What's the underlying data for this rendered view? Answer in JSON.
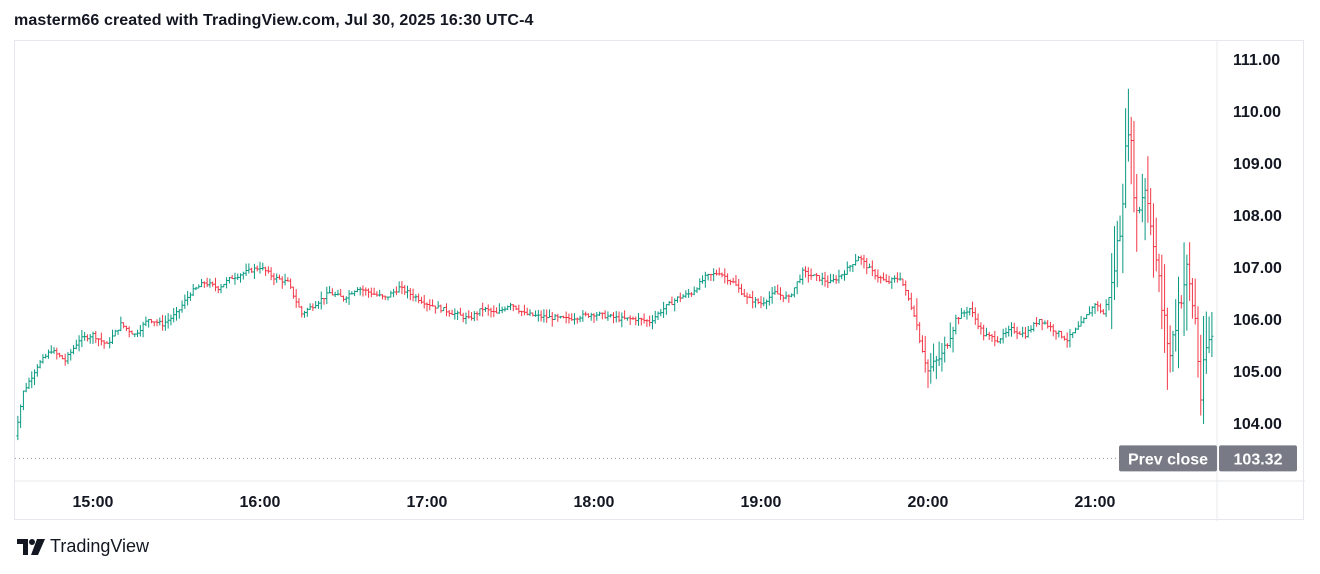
{
  "header": {
    "attribution": "masterm66 created with TradingView.com, Jul 30, 2025 16:30 UTC-4"
  },
  "footer": {
    "brand": "TradingView",
    "logo_icon": "tradingview-logo-icon"
  },
  "colors": {
    "up": "#089981",
    "down": "#f23645",
    "prev_close_badge": "#787b86",
    "grid": "#e6e8ee"
  },
  "chart_data": {
    "type": "candlestick",
    "title": "",
    "x_ticks": [
      "15:00",
      "16:00",
      "17:00",
      "18:00",
      "19:00",
      "20:00",
      "21:00"
    ],
    "y_ticks": [
      "104.00",
      "105.00",
      "106.00",
      "107.00",
      "108.00",
      "109.00",
      "110.00",
      "111.00"
    ],
    "ylim": [
      103.2,
      111.3
    ],
    "xlim": [
      "14:31",
      "21:55"
    ],
    "prev_close": {
      "label": "Prev close",
      "value": "103.32"
    },
    "price_path": [
      [
        "14:31",
        103.5
      ],
      [
        "14:35",
        104.6
      ],
      [
        "14:40",
        105.1
      ],
      [
        "14:45",
        105.4
      ],
      [
        "14:50",
        105.2
      ],
      [
        "14:55",
        105.6
      ],
      [
        "15:00",
        105.7
      ],
      [
        "15:05",
        105.5
      ],
      [
        "15:10",
        105.9
      ],
      [
        "15:15",
        105.7
      ],
      [
        "15:20",
        106.0
      ],
      [
        "15:25",
        105.9
      ],
      [
        "15:30",
        106.1
      ],
      [
        "15:35",
        106.5
      ],
      [
        "15:40",
        106.7
      ],
      [
        "15:45",
        106.6
      ],
      [
        "15:50",
        106.8
      ],
      [
        "15:55",
        106.9
      ],
      [
        "16:00",
        107.0
      ],
      [
        "16:05",
        106.8
      ],
      [
        "16:10",
        106.7
      ],
      [
        "16:15",
        106.1
      ],
      [
        "16:20",
        106.3
      ],
      [
        "16:25",
        106.5
      ],
      [
        "16:30",
        106.4
      ],
      [
        "16:35",
        106.6
      ],
      [
        "16:40",
        106.5
      ],
      [
        "16:45",
        106.4
      ],
      [
        "16:50",
        106.6
      ],
      [
        "17:00",
        106.3
      ],
      [
        "17:05",
        106.2
      ],
      [
        "17:10",
        106.1
      ],
      [
        "17:15",
        106.0
      ],
      [
        "17:20",
        106.2
      ],
      [
        "17:25",
        106.1
      ],
      [
        "17:30",
        106.3
      ],
      [
        "17:35",
        106.1
      ],
      [
        "17:40",
        106.05
      ],
      [
        "17:50",
        106.0
      ],
      [
        "18:00",
        106.1
      ],
      [
        "18:05",
        106.05
      ],
      [
        "18:10",
        106.0
      ],
      [
        "18:15",
        106.0
      ],
      [
        "18:20",
        105.95
      ],
      [
        "18:25",
        106.2
      ],
      [
        "18:30",
        106.4
      ],
      [
        "18:35",
        106.5
      ],
      [
        "18:40",
        106.8
      ],
      [
        "18:45",
        106.9
      ],
      [
        "18:50",
        106.7
      ],
      [
        "18:55",
        106.4
      ],
      [
        "19:00",
        106.3
      ],
      [
        "19:05",
        106.5
      ],
      [
        "19:10",
        106.4
      ],
      [
        "19:15",
        106.9
      ],
      [
        "19:20",
        106.8
      ],
      [
        "19:25",
        106.7
      ],
      [
        "19:30",
        106.9
      ],
      [
        "19:35",
        107.2
      ],
      [
        "19:40",
        106.9
      ],
      [
        "19:45",
        106.7
      ],
      [
        "19:50",
        106.8
      ],
      [
        "19:55",
        106.1
      ],
      [
        "20:00",
        105.0
      ],
      [
        "20:05",
        105.3
      ],
      [
        "20:10",
        106.0
      ],
      [
        "20:15",
        106.2
      ],
      [
        "20:20",
        105.7
      ],
      [
        "20:25",
        105.6
      ],
      [
        "20:30",
        105.8
      ],
      [
        "20:35",
        105.7
      ],
      [
        "20:40",
        106.0
      ],
      [
        "20:45",
        105.8
      ],
      [
        "20:50",
        105.6
      ],
      [
        "20:55",
        105.9
      ],
      [
        "21:00",
        106.3
      ],
      [
        "21:03",
        106.1
      ],
      [
        "21:06",
        106.6
      ],
      [
        "21:09",
        107.8
      ],
      [
        "21:12",
        109.8
      ],
      [
        "21:15",
        108.0
      ],
      [
        "21:18",
        108.6
      ],
      [
        "21:21",
        107.6
      ],
      [
        "21:24",
        106.2
      ],
      [
        "21:27",
        105.3
      ],
      [
        "21:30",
        106.3
      ],
      [
        "21:33",
        106.9
      ],
      [
        "21:36",
        106.0
      ],
      [
        "21:38",
        104.5
      ],
      [
        "21:40",
        105.4
      ],
      [
        "21:42",
        105.7
      ],
      [
        "21:44",
        105.8
      ]
    ]
  }
}
